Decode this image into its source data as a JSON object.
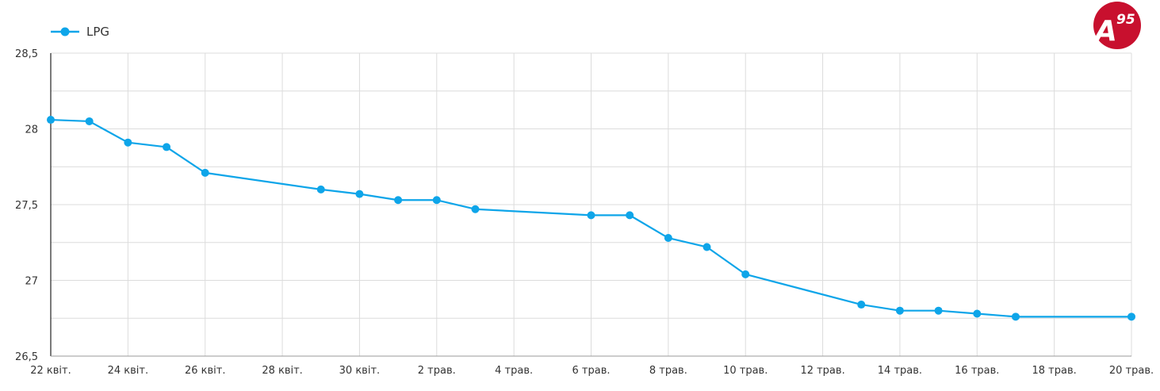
{
  "brand": {
    "accent": "#c8102e"
  },
  "chart_data": {
    "type": "line",
    "title": "",
    "xlabel": "",
    "ylabel": "",
    "ylim": [
      26.5,
      28.5
    ],
    "y_ticks": [
      "28,5",
      "28",
      "27,5",
      "27",
      "26,5"
    ],
    "y_tick_values": [
      28.5,
      28,
      27.5,
      27,
      26.5
    ],
    "x_ticks": [
      "22 квіт.",
      "24 квіт.",
      "26 квіт.",
      "28 квіт.",
      "30 квіт.",
      "2 трав.",
      "4 трав.",
      "6 трав.",
      "8 трав.",
      "10 трав.",
      "12 трав.",
      "14 трав.",
      "16 трав.",
      "18 трав.",
      "20 трав."
    ],
    "x_tick_dates": [
      "2024-04-22",
      "2024-04-24",
      "2024-04-26",
      "2024-04-28",
      "2024-04-30",
      "2024-05-02",
      "2024-05-04",
      "2024-05-06",
      "2024-05-08",
      "2024-05-10",
      "2024-05-12",
      "2024-05-14",
      "2024-05-16",
      "2024-05-18",
      "2024-05-20"
    ],
    "grid": true,
    "legend": "top-left",
    "series": [
      {
        "name": "LPG",
        "color": "#0ea5e9",
        "points": [
          {
            "x": "2024-04-22",
            "y": 28.06
          },
          {
            "x": "2024-04-23",
            "y": 28.05
          },
          {
            "x": "2024-04-24",
            "y": 27.91
          },
          {
            "x": "2024-04-25",
            "y": 27.88
          },
          {
            "x": "2024-04-26",
            "y": 27.71
          },
          {
            "x": "2024-04-29",
            "y": 27.6
          },
          {
            "x": "2024-04-30",
            "y": 27.57
          },
          {
            "x": "2024-05-01",
            "y": 27.53
          },
          {
            "x": "2024-05-02",
            "y": 27.53
          },
          {
            "x": "2024-05-03",
            "y": 27.47
          },
          {
            "x": "2024-05-06",
            "y": 27.43
          },
          {
            "x": "2024-05-07",
            "y": 27.43
          },
          {
            "x": "2024-05-08",
            "y": 27.28
          },
          {
            "x": "2024-05-09",
            "y": 27.22
          },
          {
            "x": "2024-05-10",
            "y": 27.04
          },
          {
            "x": "2024-05-13",
            "y": 26.84
          },
          {
            "x": "2024-05-14",
            "y": 26.8
          },
          {
            "x": "2024-05-15",
            "y": 26.8
          },
          {
            "x": "2024-05-16",
            "y": 26.78
          },
          {
            "x": "2024-05-17",
            "y": 26.76
          },
          {
            "x": "2024-05-20",
            "y": 26.76
          }
        ]
      }
    ]
  }
}
